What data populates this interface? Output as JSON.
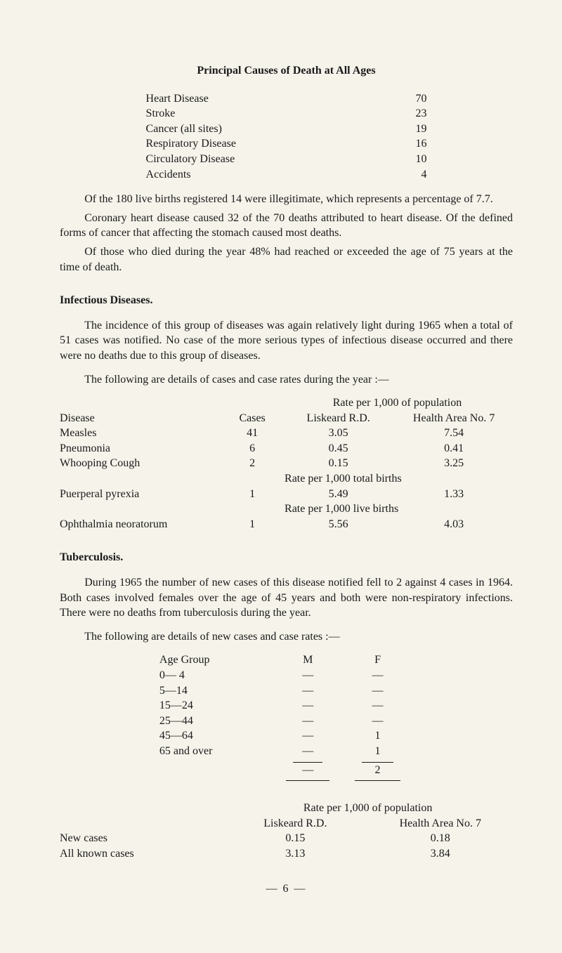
{
  "title": "Principal Causes of Death at All Ages",
  "causes": [
    {
      "label": "Heart Disease",
      "value": "70"
    },
    {
      "label": "Stroke",
      "value": "23"
    },
    {
      "label": "Cancer (all sites)",
      "value": "19"
    },
    {
      "label": "Respiratory Disease",
      "value": "16"
    },
    {
      "label": "Circulatory Disease",
      "value": "10"
    },
    {
      "label": "Accidents",
      "value": "4"
    }
  ],
  "paragraphs": {
    "p1": "Of the 180 live births registered 14 were illegitimate, which represents a percentage of 7.7.",
    "p2": "Coronary heart disease caused 32 of the 70 deaths attributed to heart disease. Of the defined forms of cancer that affecting the stomach caused most deaths.",
    "p3": "Of those who died during the year 48% had reached or exceeded the age of 75 years at the time of death."
  },
  "infectious": {
    "heading": "Infectious Diseases.",
    "intro": "The incidence of this group of diseases was again relatively light during 1965 when a total of 51 cases was notified. No case of the more serious types of infectious disease occurred and there were no deaths due to this group of diseases.",
    "lead": "The following are details of cases and case rates during the year :—",
    "rate_header_top": "Rate per 1,000 of population",
    "col_disease": "Disease",
    "col_cases": "Cases",
    "col_liskeard": "Liskeard R.D.",
    "col_health": "Health Area No. 7",
    "rows": [
      {
        "disease": "Measles",
        "cases": "41",
        "rd": "3.05",
        "ha": "7.54"
      },
      {
        "disease": "Pneumonia",
        "cases": "6",
        "rd": "0.45",
        "ha": "0.41"
      },
      {
        "disease": "Whooping Cough",
        "cases": "2",
        "rd": "0.15",
        "ha": "3.25"
      }
    ],
    "sub1_label": "Rate per 1,000 total births",
    "sub1_row": {
      "disease": "Puerperal pyrexia",
      "cases": "1",
      "rd": "5.49",
      "ha": "1.33"
    },
    "sub2_label": "Rate per 1,000 live births",
    "sub2_row": {
      "disease": "Ophthalmia neoratorum",
      "cases": "1",
      "rd": "5.56",
      "ha": "4.03"
    }
  },
  "tb": {
    "heading": "Tuberculosis.",
    "intro": "During 1965 the number of new cases of this disease notified fell to 2 against 4 cases in 1964. Both cases involved females over the age of 45 years and both were non-respiratory infections. There were no deaths from tuberculosis during the year.",
    "lead": "The following are details of new cases and case rates :—",
    "age_hdr": {
      "c1": "Age Group",
      "c2": "M",
      "c3": "F"
    },
    "age_rows": [
      {
        "c1": "0— 4",
        "c2": "—",
        "c3": "—"
      },
      {
        "c1": "5—14",
        "c2": "—",
        "c3": "—"
      },
      {
        "c1": "15—24",
        "c2": "—",
        "c3": "—"
      },
      {
        "c1": "25—44",
        "c2": "—",
        "c3": "—"
      },
      {
        "c1": "45—64",
        "c2": "—",
        "c3": "1"
      },
      {
        "c1": "65 and over",
        "c2": "—",
        "c3": "1"
      }
    ],
    "total_row": {
      "c1": "",
      "c2": "—",
      "c3": "2"
    },
    "rates_top": "Rate per 1,000 of population",
    "rates_hdr": {
      "c2": "Liskeard R.D.",
      "c3": "Health Area No. 7"
    },
    "rates_rows": [
      {
        "c1": "New cases",
        "c2": "0.15",
        "c3": "0.18"
      },
      {
        "c1": "All known cases",
        "c2": "3.13",
        "c3": "3.84"
      }
    ]
  },
  "page_number": "— 6 —"
}
